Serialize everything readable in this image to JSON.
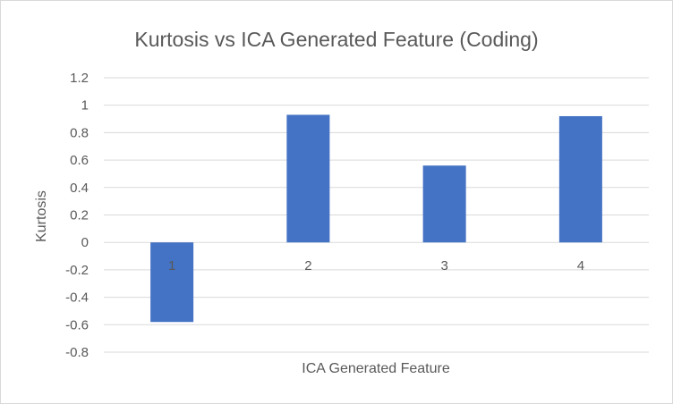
{
  "chart_data": {
    "type": "bar",
    "title": "Kurtosis vs ICA Generated Feature (Coding)",
    "xlabel": "ICA Generated Feature",
    "ylabel": "Kurtosis",
    "categories": [
      "1",
      "2",
      "3",
      "4"
    ],
    "values": [
      -0.58,
      0.93,
      0.56,
      0.92
    ],
    "ylim": [
      -0.8,
      1.2
    ],
    "yticks": [
      "1.2",
      "1",
      "0.8",
      "0.6",
      "0.4",
      "0.2",
      "0",
      "-0.2",
      "-0.4",
      "-0.6",
      "-0.8"
    ],
    "grid": true,
    "legend": "none",
    "colors": {
      "bar": "#4472c4",
      "grid": "#d9d9d9",
      "text": "#595959"
    }
  }
}
